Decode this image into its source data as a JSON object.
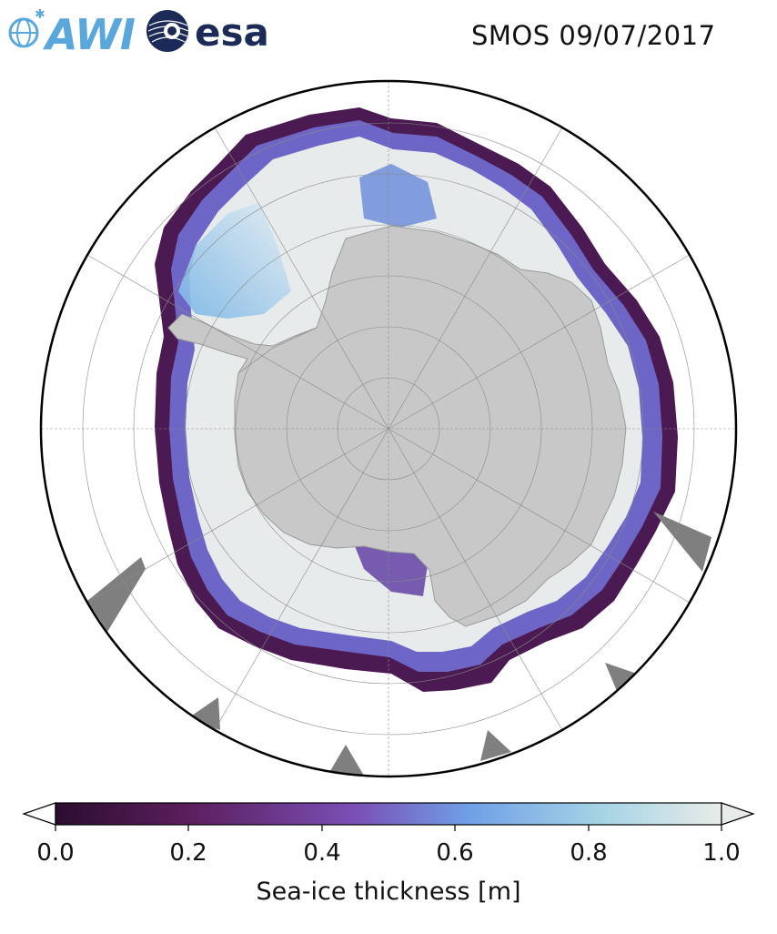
{
  "header": {
    "awi_logo_text": "AWI",
    "esa_logo_text": "esa",
    "title": "SMOS 09/07/2017"
  },
  "map": {
    "projection": "south-polar-stereographic",
    "regions": [
      "open-ocean",
      "sea-ice",
      "antarctic-continent",
      "no-data-gap"
    ],
    "colors": {
      "ocean": "#ffffff",
      "land": "#c8c8c8",
      "thick_ice": "#e8ebec",
      "no_data": "#7f7f7f",
      "gridline": "#8a8a8a",
      "border": "#000000"
    }
  },
  "colorbar": {
    "label": "Sea-ice thickness [m]",
    "ticks": [
      "0.0",
      "0.2",
      "0.4",
      "0.6",
      "0.8",
      "1.0"
    ],
    "range": [
      0.0,
      1.0
    ],
    "extend": "both",
    "colormap": [
      "#2b0d2e",
      "#5b1e5e",
      "#7a4fb5",
      "#6f9fe6",
      "#a5d4e6",
      "#e8ece9"
    ]
  }
}
